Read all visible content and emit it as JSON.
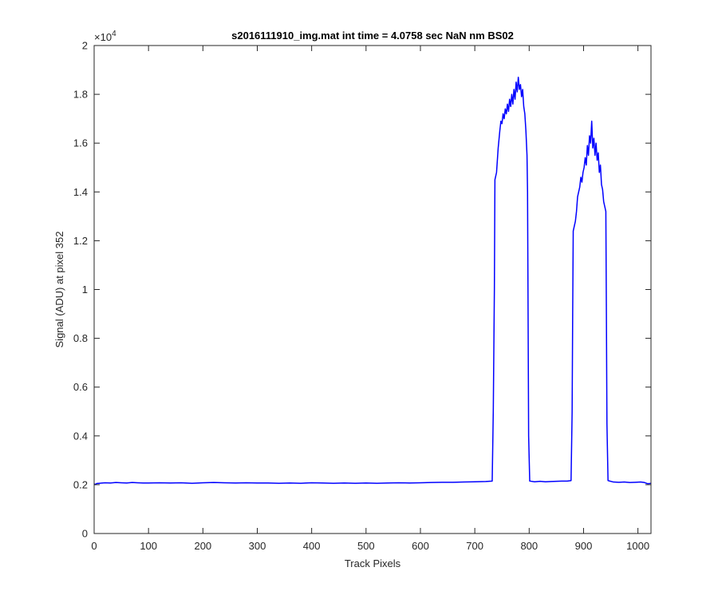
{
  "chart_data": {
    "type": "line",
    "title": "s2016111910_img.mat int time = 4.0758 sec  NaN nm BS02",
    "xlabel": "Track Pixels",
    "ylabel": "Signal (ADU) at pixel 352",
    "xlim": [
      0,
      1024
    ],
    "ylim": [
      0,
      20000
    ],
    "x_ticks": [
      0,
      100,
      200,
      300,
      400,
      500,
      600,
      700,
      800,
      900,
      1000
    ],
    "x_tick_labels": [
      "0",
      "100",
      "200",
      "300",
      "400",
      "500",
      "600",
      "700",
      "800",
      "900",
      "1000"
    ],
    "y_ticks": [
      0,
      2000,
      4000,
      6000,
      8000,
      10000,
      12000,
      14000,
      16000,
      18000,
      20000
    ],
    "y_tick_labels": [
      "0",
      "0.2",
      "0.4",
      "0.6",
      "0.8",
      "1",
      "1.2",
      "1.4",
      "1.6",
      "1.8",
      "2"
    ],
    "y_exponent_base": "×10",
    "y_exponent_power": "4",
    "grid": false,
    "legend": "none",
    "series": [
      {
        "color": "#0000ff",
        "points": [
          [
            0,
            2030
          ],
          [
            2,
            2010
          ],
          [
            5,
            2050
          ],
          [
            10,
            2060
          ],
          [
            20,
            2080
          ],
          [
            30,
            2070
          ],
          [
            40,
            2090
          ],
          [
            50,
            2080
          ],
          [
            60,
            2070
          ],
          [
            70,
            2090
          ],
          [
            80,
            2080
          ],
          [
            90,
            2070
          ],
          [
            100,
            2070
          ],
          [
            120,
            2080
          ],
          [
            140,
            2070
          ],
          [
            160,
            2080
          ],
          [
            180,
            2060
          ],
          [
            200,
            2080
          ],
          [
            220,
            2090
          ],
          [
            240,
            2080
          ],
          [
            260,
            2070
          ],
          [
            280,
            2080
          ],
          [
            300,
            2070
          ],
          [
            320,
            2070
          ],
          [
            340,
            2060
          ],
          [
            360,
            2070
          ],
          [
            380,
            2060
          ],
          [
            400,
            2080
          ],
          [
            420,
            2070
          ],
          [
            440,
            2060
          ],
          [
            460,
            2070
          ],
          [
            480,
            2060
          ],
          [
            500,
            2070
          ],
          [
            520,
            2060
          ],
          [
            540,
            2070
          ],
          [
            560,
            2080
          ],
          [
            580,
            2070
          ],
          [
            600,
            2080
          ],
          [
            620,
            2090
          ],
          [
            640,
            2100
          ],
          [
            660,
            2100
          ],
          [
            680,
            2110
          ],
          [
            700,
            2120
          ],
          [
            720,
            2130
          ],
          [
            732,
            2150
          ],
          [
            734,
            5000
          ],
          [
            736,
            10000
          ],
          [
            737,
            14500
          ],
          [
            740,
            14800
          ],
          [
            743,
            15800
          ],
          [
            746,
            16500
          ],
          [
            748,
            16900
          ],
          [
            750,
            16800
          ],
          [
            752,
            17200
          ],
          [
            754,
            17000
          ],
          [
            756,
            17400
          ],
          [
            758,
            17200
          ],
          [
            760,
            17600
          ],
          [
            762,
            17300
          ],
          [
            764,
            17800
          ],
          [
            766,
            17500
          ],
          [
            768,
            18000
          ],
          [
            770,
            17600
          ],
          [
            772,
            18200
          ],
          [
            774,
            17800
          ],
          [
            776,
            18500
          ],
          [
            778,
            18100
          ],
          [
            780,
            18700
          ],
          [
            782,
            18200
          ],
          [
            784,
            18400
          ],
          [
            786,
            17900
          ],
          [
            788,
            18200
          ],
          [
            790,
            17500
          ],
          [
            792,
            17200
          ],
          [
            794,
            16500
          ],
          [
            796,
            15500
          ],
          [
            797,
            14000
          ],
          [
            798,
            9000
          ],
          [
            799,
            4000
          ],
          [
            801,
            2150
          ],
          [
            810,
            2120
          ],
          [
            820,
            2140
          ],
          [
            830,
            2120
          ],
          [
            840,
            2130
          ],
          [
            850,
            2140
          ],
          [
            860,
            2150
          ],
          [
            870,
            2150
          ],
          [
            877,
            2170
          ],
          [
            879,
            5000
          ],
          [
            880,
            9000
          ],
          [
            881,
            12400
          ],
          [
            883,
            12600
          ],
          [
            885,
            12800
          ],
          [
            887,
            13200
          ],
          [
            889,
            13800
          ],
          [
            891,
            14000
          ],
          [
            893,
            14200
          ],
          [
            895,
            14600
          ],
          [
            897,
            14400
          ],
          [
            899,
            14800
          ],
          [
            901,
            15000
          ],
          [
            903,
            15400
          ],
          [
            905,
            15100
          ],
          [
            907,
            15900
          ],
          [
            909,
            15500
          ],
          [
            911,
            16300
          ],
          [
            913,
            16000
          ],
          [
            915,
            16900
          ],
          [
            917,
            15800
          ],
          [
            919,
            16200
          ],
          [
            921,
            15500
          ],
          [
            923,
            16000
          ],
          [
            925,
            15300
          ],
          [
            927,
            15600
          ],
          [
            929,
            14800
          ],
          [
            931,
            15100
          ],
          [
            933,
            14300
          ],
          [
            935,
            14100
          ],
          [
            937,
            13600
          ],
          [
            939,
            13400
          ],
          [
            941,
            13200
          ],
          [
            942,
            9000
          ],
          [
            943,
            4500
          ],
          [
            945,
            2170
          ],
          [
            955,
            2110
          ],
          [
            965,
            2100
          ],
          [
            975,
            2110
          ],
          [
            985,
            2090
          ],
          [
            995,
            2100
          ],
          [
            1005,
            2110
          ],
          [
            1012,
            2090
          ],
          [
            1018,
            2040
          ],
          [
            1022,
            2050
          ],
          [
            1024,
            2060
          ]
        ]
      }
    ]
  }
}
